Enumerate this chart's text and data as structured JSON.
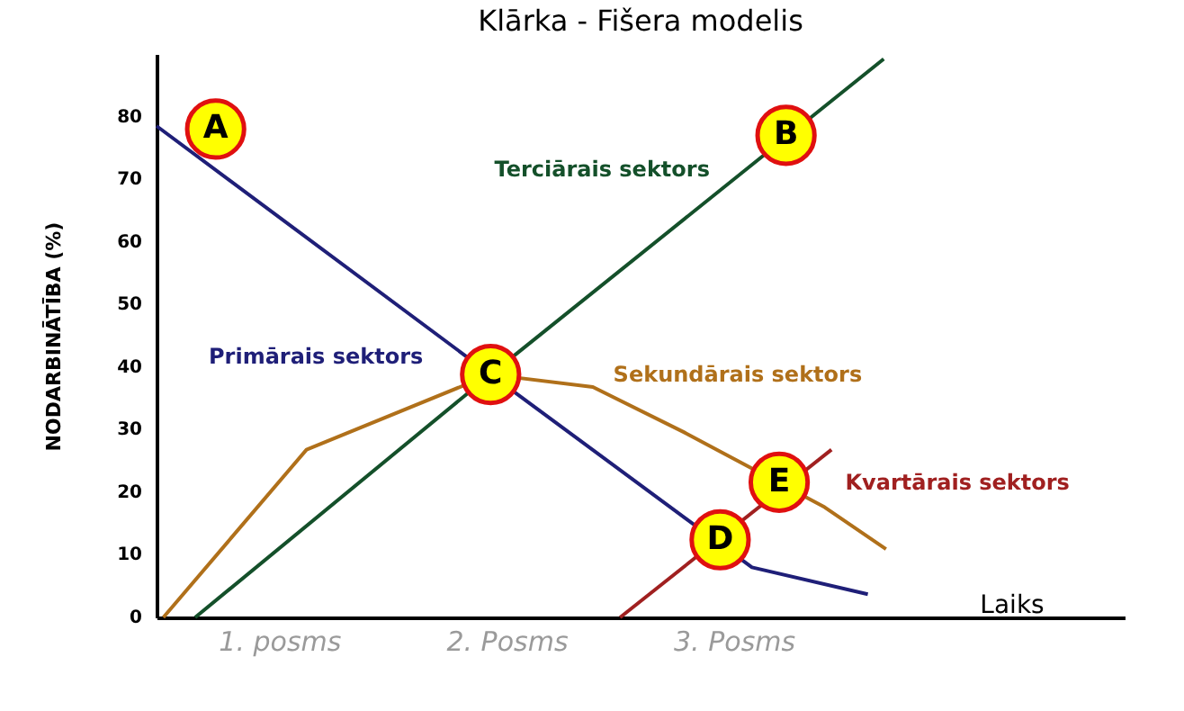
{
  "chart_data": {
    "type": "line",
    "title": "Klārka - Fišera modelis",
    "xlabel": "Laiks",
    "ylabel": "NODARBINĀTĪBA (%)",
    "xlim": [
      0.46,
      4.72
    ],
    "ylim": [
      0,
      90
    ],
    "xticks": [
      {
        "value": 1,
        "label": "1. posms"
      },
      {
        "value": 2,
        "label": "2. Posms"
      },
      {
        "value": 3,
        "label": "3. Posms"
      }
    ],
    "yticks": [
      0,
      10,
      20,
      30,
      40,
      50,
      60,
      70,
      80
    ],
    "grid": false,
    "legend": false,
    "marker": "none",
    "line_style": "solid",
    "series": [
      {
        "name": "Primārais sektors",
        "color": "#1f1f78",
        "x": [
          0.46,
          1.93,
          3.08,
          3.59
        ],
        "values": [
          78.5,
          38.8,
          8,
          3.7
        ]
      },
      {
        "name": "Sekundārais sektors",
        "color": "#b0701a",
        "x": [
          0.49,
          1.12,
          1.93,
          2.38,
          2.78,
          3.4,
          3.67
        ],
        "values": [
          0,
          26.8,
          38.8,
          36.8,
          29.6,
          17.6,
          10.9
        ]
      },
      {
        "name": "Terciārais sektors",
        "color": "#14502a",
        "x": [
          0.63,
          1.93,
          3.66
        ],
        "values": [
          0,
          38.8,
          89.2
        ]
      },
      {
        "name": "Kvartārais sektors",
        "color": "#a02020",
        "x": [
          2.5,
          3.43
        ],
        "values": [
          0,
          26.8
        ]
      }
    ],
    "annotations": [
      {
        "text": "A",
        "x": 0.72,
        "y": 78
      },
      {
        "text": "B",
        "x": 3.23,
        "y": 77
      },
      {
        "text": "C",
        "x": 1.93,
        "y": 38.8
      },
      {
        "text": "D",
        "x": 2.94,
        "y": 12.4
      },
      {
        "text": "E",
        "x": 3.2,
        "y": 21.6
      }
    ]
  }
}
